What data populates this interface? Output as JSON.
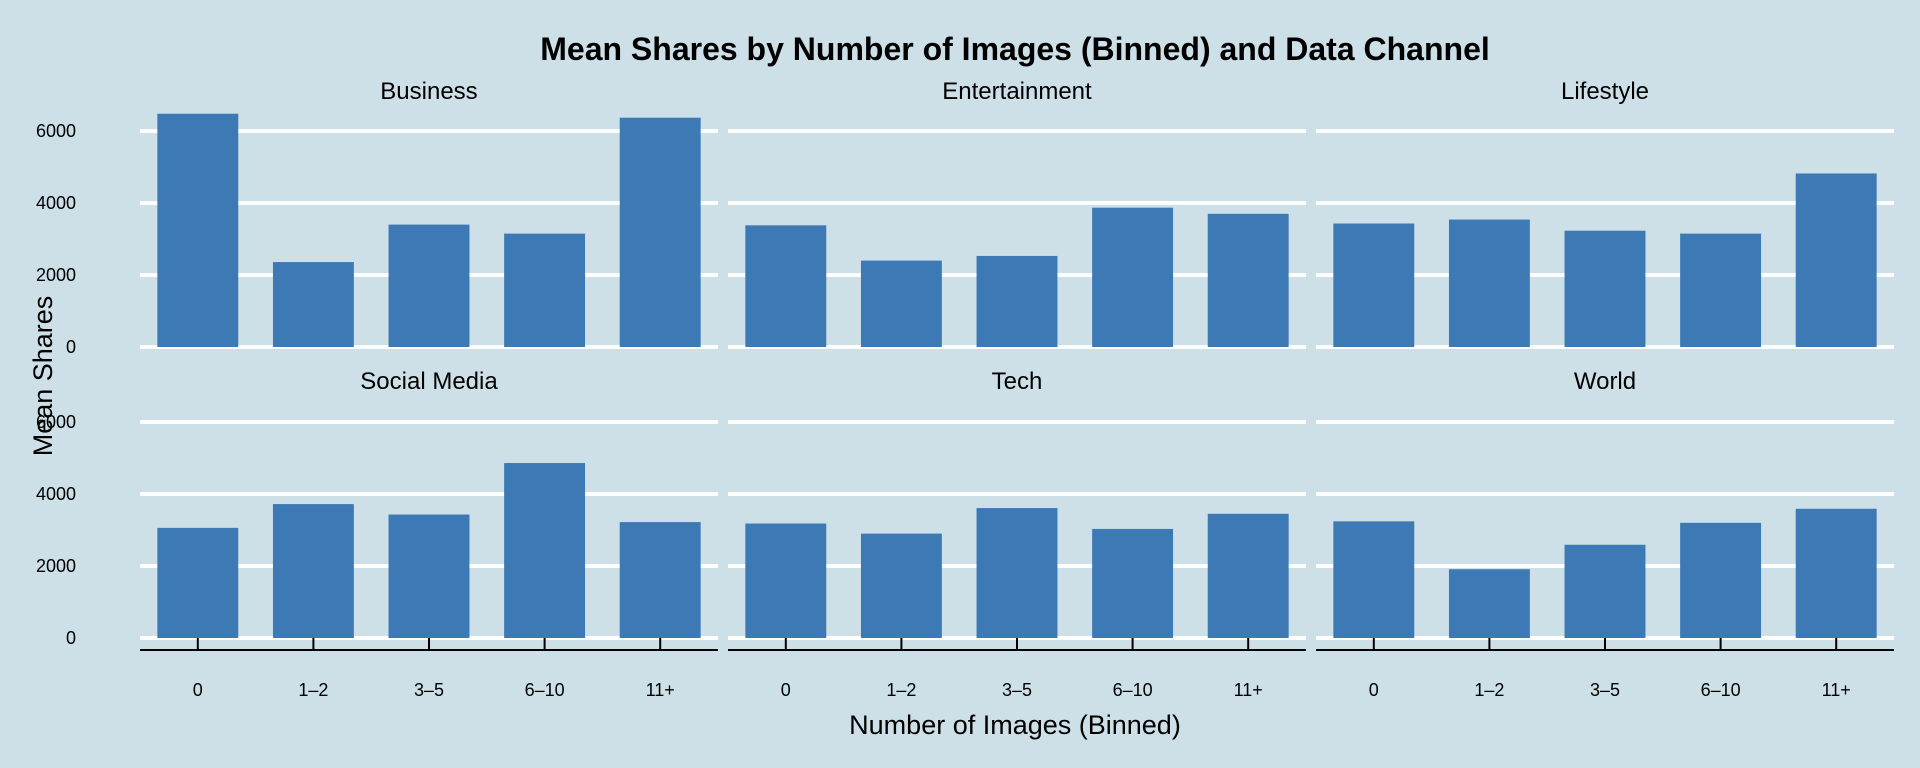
{
  "chart_data": {
    "type": "bar",
    "title": "Mean Shares by Number of Images (Binned) and Data Channel",
    "xlabel": "Number of Images (Binned)",
    "ylabel": "Mean Shares",
    "categories": [
      "0",
      "1–2",
      "3–5",
      "6–10",
      "11+"
    ],
    "ylim": [
      0,
      6500
    ],
    "yticks": [
      0,
      2000,
      4000,
      6000
    ],
    "grid": true,
    "bar_color": "#3d7ab5",
    "background": "#cde0e8",
    "panels": [
      {
        "name": "Business",
        "values": [
          6480,
          2360,
          3400,
          3150,
          6370
        ]
      },
      {
        "name": "Entertainment",
        "values": [
          3380,
          2400,
          2530,
          3870,
          3700
        ]
      },
      {
        "name": "Lifestyle",
        "values": [
          3430,
          3540,
          3230,
          3150,
          4820
        ]
      },
      {
        "name": "Social Media",
        "values": [
          3060,
          3720,
          3430,
          4860,
          3220
        ]
      },
      {
        "name": "Tech",
        "values": [
          3180,
          2900,
          3610,
          3030,
          3450
        ]
      },
      {
        "name": "World",
        "values": [
          3240,
          1910,
          2590,
          3200,
          3590
        ]
      }
    ]
  }
}
